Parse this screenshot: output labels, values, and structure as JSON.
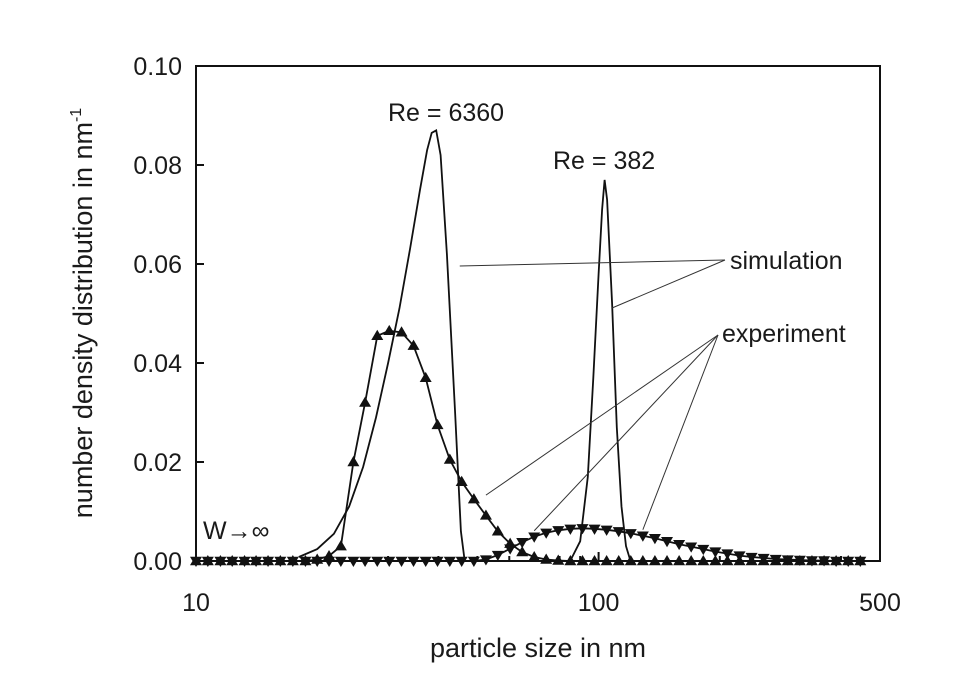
{
  "chart_data": {
    "type": "line",
    "xlabel": "particle size in nm",
    "ylabel": "number density distribution in nm",
    "ylabel_superscript": "-1",
    "xscale": "log",
    "xlim": [
      10,
      500
    ],
    "ylim": [
      0,
      0.1
    ],
    "xticks": [
      "10",
      "100",
      "500"
    ],
    "yticks": [
      "0.00",
      "0.02",
      "0.04",
      "0.06",
      "0.08",
      "0.10"
    ],
    "annotations": {
      "re_high": "Re = 6360",
      "re_low": "Re = 382",
      "simulation": "simulation",
      "experiment": "experiment",
      "w_limit": "W→∞"
    },
    "series": [
      {
        "id": "sim-re6360",
        "style": "line",
        "x": [
          18,
          20,
          22,
          24,
          26,
          28,
          30,
          32,
          34,
          36,
          37.5,
          38.5,
          39.5,
          40.5,
          42,
          44,
          45.5,
          46.5
        ],
        "y": [
          0.0008,
          0.0024,
          0.0055,
          0.011,
          0.019,
          0.029,
          0.04,
          0.051,
          0.063,
          0.075,
          0.083,
          0.0865,
          0.087,
          0.082,
          0.062,
          0.03,
          0.006,
          0.0
        ]
      },
      {
        "id": "sim-re382",
        "style": "line",
        "x": [
          85,
          90,
          94,
          97,
          100,
          102,
          103.5,
          105,
          108,
          111,
          114,
          117,
          120
        ],
        "y": [
          0.0,
          0.004,
          0.017,
          0.037,
          0.058,
          0.071,
          0.077,
          0.073,
          0.052,
          0.027,
          0.011,
          0.003,
          0.0
        ]
      },
      {
        "id": "exp-re6360",
        "style": "line-markers",
        "marker": "triangle-up",
        "x": [
          10,
          10.7,
          11.5,
          12.3,
          13.2,
          14.1,
          15.1,
          16.2,
          17.4,
          18.7,
          20,
          21.4,
          22.9,
          24.6,
          26.3,
          28.2,
          30.2,
          32.4,
          34.7,
          37.2,
          39.8,
          42.7,
          45.7,
          49,
          52.5,
          56.2,
          60.3,
          64.6,
          69.2,
          74.1,
          79.4,
          85.1,
          91.2,
          97.7,
          104.7,
          112.2,
          120.2,
          128.8,
          138,
          147.9,
          158.5,
          169.8,
          182,
          195,
          208.9,
          223.9,
          239.9,
          257,
          275.4,
          295.1,
          316.2,
          338.8,
          363.1,
          389,
          416.9,
          446.7
        ],
        "y": [
          0,
          0,
          0,
          0,
          0,
          0,
          0,
          0,
          0,
          0,
          0.0003,
          0.001,
          0.003,
          0.02,
          0.032,
          0.0455,
          0.0465,
          0.0462,
          0.0435,
          0.037,
          0.0275,
          0.0205,
          0.016,
          0.0125,
          0.0092,
          0.006,
          0.0035,
          0.0018,
          0.0008,
          0.0003,
          0.0001,
          0,
          0,
          0,
          0,
          0,
          0,
          0,
          0,
          0,
          0,
          0,
          0,
          0,
          0,
          0,
          0,
          0,
          0,
          0,
          0,
          0,
          0,
          0,
          0,
          0
        ]
      },
      {
        "id": "exp-re382",
        "style": "line-markers",
        "marker": "triangle-down",
        "x": [
          10,
          10.7,
          11.5,
          12.3,
          13.2,
          14.1,
          15.1,
          16.2,
          17.4,
          18.7,
          20,
          21.4,
          22.9,
          24.6,
          26.3,
          28.2,
          30.2,
          32.4,
          34.7,
          37.2,
          39.8,
          42.7,
          45.7,
          49,
          52.5,
          56.2,
          60.3,
          64.6,
          69.2,
          74.1,
          79.4,
          85.1,
          91.2,
          97.7,
          104.7,
          112.2,
          120.2,
          128.8,
          138,
          147.9,
          158.5,
          169.8,
          182,
          195,
          208.9,
          223.9,
          239.9,
          257,
          275.4,
          295.1,
          316.2,
          338.8,
          363.1,
          389,
          416.9,
          446.7
        ],
        "y": [
          0,
          0,
          0,
          0,
          0,
          0,
          0,
          0,
          0,
          0,
          0,
          0,
          0,
          0,
          0,
          0,
          0,
          0,
          0,
          0,
          0,
          0,
          0,
          0,
          0.0003,
          0.0012,
          0.0025,
          0.0038,
          0.0049,
          0.0057,
          0.0062,
          0.0065,
          0.0066,
          0.0065,
          0.0063,
          0.006,
          0.0056,
          0.0051,
          0.0046,
          0.004,
          0.0034,
          0.0029,
          0.0024,
          0.0019,
          0.0015,
          0.0011,
          0.0008,
          0.0006,
          0.0004,
          0.0003,
          0.0002,
          0.0001,
          0.0001,
          0,
          0,
          0
        ]
      }
    ]
  }
}
